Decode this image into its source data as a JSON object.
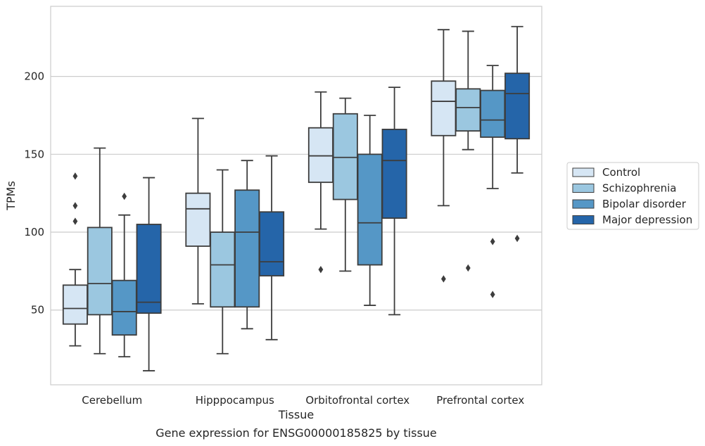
{
  "chart_data": {
    "type": "box",
    "caption": "Gene expression for ENSG00000185825 by tissue",
    "xlabel": "Tissue",
    "ylabel": "TPMs",
    "ylim": [
      2,
      245
    ],
    "yticks": [
      50,
      100,
      150,
      200
    ],
    "grid": true,
    "legend_position": "right",
    "categories": [
      "Cerebellum",
      "Hipppocampus",
      "Orbitofrontal cortex",
      "Prefrontal cortex"
    ],
    "series": [
      {
        "name": "Control",
        "color": "#d6e6f4",
        "boxes": [
          {
            "whislo": 27,
            "q1": 41,
            "med": 51,
            "q3": 66,
            "whishi": 76,
            "fliers": [
              107,
              117,
              136
            ]
          },
          {
            "whislo": 54,
            "q1": 91,
            "med": 115,
            "q3": 125,
            "whishi": 173,
            "fliers": []
          },
          {
            "whislo": 102,
            "q1": 132,
            "med": 149,
            "q3": 167,
            "whishi": 190,
            "fliers": [
              76
            ]
          },
          {
            "whislo": 117,
            "q1": 162,
            "med": 184,
            "q3": 197,
            "whishi": 230,
            "fliers": [
              70
            ]
          }
        ]
      },
      {
        "name": "Schizophrenia",
        "color": "#9bc7e0",
        "boxes": [
          {
            "whislo": 22,
            "q1": 47,
            "med": 67,
            "q3": 103,
            "whishi": 154,
            "fliers": []
          },
          {
            "whislo": 22,
            "q1": 52,
            "med": 79,
            "q3": 100,
            "whishi": 140,
            "fliers": []
          },
          {
            "whislo": 75,
            "q1": 121,
            "med": 148,
            "q3": 176,
            "whishi": 186,
            "fliers": []
          },
          {
            "whislo": 153,
            "q1": 165,
            "med": 180,
            "q3": 192,
            "whishi": 229,
            "fliers": [
              77
            ]
          }
        ]
      },
      {
        "name": "Bipolar disorder",
        "color": "#5597c6",
        "boxes": [
          {
            "whislo": 20,
            "q1": 34,
            "med": 49,
            "q3": 69,
            "whishi": 111,
            "fliers": [
              123
            ]
          },
          {
            "whislo": 38,
            "q1": 52,
            "med": 100,
            "q3": 127,
            "whishi": 146,
            "fliers": []
          },
          {
            "whislo": 53,
            "q1": 79,
            "med": 106,
            "q3": 150,
            "whishi": 175,
            "fliers": []
          },
          {
            "whislo": 128,
            "q1": 161,
            "med": 172,
            "q3": 191,
            "whishi": 207,
            "fliers": [
              60,
              94
            ]
          }
        ]
      },
      {
        "name": "Major depression",
        "color": "#2565a9",
        "boxes": [
          {
            "whislo": 11,
            "q1": 48,
            "med": 55,
            "q3": 105,
            "whishi": 135,
            "fliers": []
          },
          {
            "whislo": 31,
            "q1": 72,
            "med": 81,
            "q3": 113,
            "whishi": 149,
            "fliers": []
          },
          {
            "whislo": 47,
            "q1": 109,
            "med": 146,
            "q3": 166,
            "whishi": 193,
            "fliers": []
          },
          {
            "whislo": 138,
            "q1": 160,
            "med": 189,
            "q3": 202,
            "whishi": 232,
            "fliers": [
              96
            ]
          }
        ]
      }
    ]
  }
}
